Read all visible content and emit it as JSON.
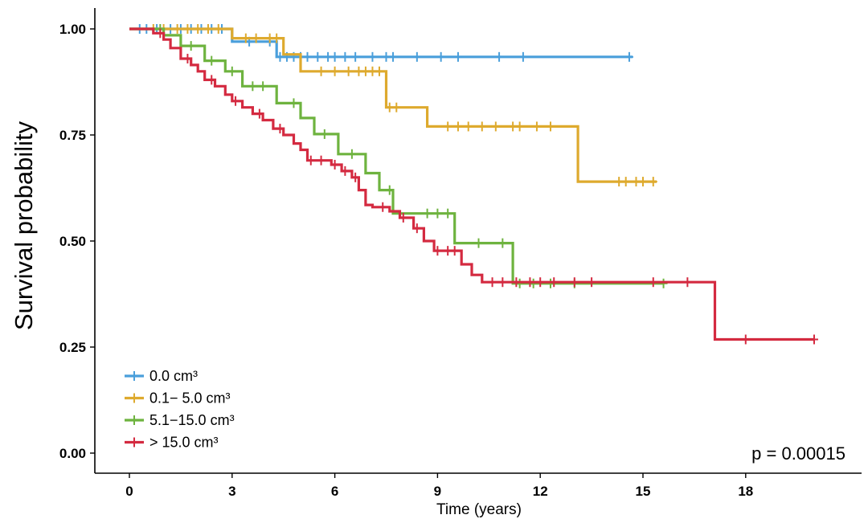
{
  "chart_data": {
    "type": "line",
    "subtype": "kaplan-meier",
    "title": "",
    "xlabel": "Time (years)",
    "ylabel": "Survival probability",
    "xlim": [
      -1,
      21
    ],
    "ylim": [
      -0.05,
      1.05
    ],
    "xticks": [
      0,
      3,
      6,
      9,
      12,
      15,
      18
    ],
    "yticks": [
      0.0,
      0.25,
      0.5,
      0.75,
      1.0
    ],
    "ytick_labels": [
      "0.00",
      "0.25",
      "0.50",
      "0.75",
      "1.00"
    ],
    "grid": false,
    "legend_position": "bottom-left",
    "annotation": "p = 0.00015",
    "series": [
      {
        "name": "0.0 cm³",
        "color": "#4A9FDB",
        "steps": [
          [
            0,
            1.0
          ],
          [
            3.0,
            0.97
          ],
          [
            4.3,
            0.934
          ],
          [
            14.7,
            0.934
          ]
        ],
        "censor_times": [
          0.3,
          0.5,
          0.8,
          1.2,
          1.5,
          1.8,
          2.1,
          2.4,
          2.7,
          3.5,
          4.1,
          4.4,
          4.6,
          4.8,
          5.0,
          5.2,
          5.5,
          5.8,
          6.0,
          6.3,
          6.6,
          7.1,
          7.5,
          7.7,
          8.4,
          9.1,
          9.6,
          10.8,
          11.5,
          14.6
        ]
      },
      {
        "name": "0.1− 5.0 cm³",
        "color": "#DEAA2E",
        "steps": [
          [
            0,
            1.0
          ],
          [
            3.0,
            0.978
          ],
          [
            4.5,
            0.94
          ],
          [
            5.0,
            0.9
          ],
          [
            7.5,
            0.815
          ],
          [
            8.7,
            0.77
          ],
          [
            13.1,
            0.64
          ],
          [
            15.4,
            0.64
          ]
        ],
        "censor_times": [
          0.7,
          1.0,
          1.4,
          1.7,
          2.0,
          2.3,
          2.6,
          3.4,
          3.7,
          4.1,
          4.3,
          5.6,
          6.0,
          6.4,
          6.7,
          6.9,
          7.1,
          7.3,
          7.6,
          7.8,
          9.3,
          9.6,
          9.9,
          10.3,
          10.7,
          11.2,
          11.4,
          11.9,
          12.3,
          14.3,
          14.5,
          14.8,
          15.0,
          15.3
        ]
      },
      {
        "name": "5.1−15.0 cm³",
        "color": "#6EB33F",
        "steps": [
          [
            0,
            1.0
          ],
          [
            1.0,
            0.985
          ],
          [
            1.5,
            0.96
          ],
          [
            2.2,
            0.925
          ],
          [
            2.8,
            0.9
          ],
          [
            3.3,
            0.865
          ],
          [
            4.3,
            0.825
          ],
          [
            5.0,
            0.79
          ],
          [
            5.4,
            0.752
          ],
          [
            6.1,
            0.705
          ],
          [
            6.9,
            0.66
          ],
          [
            7.3,
            0.62
          ],
          [
            7.7,
            0.565
          ],
          [
            9.5,
            0.495
          ],
          [
            11.2,
            0.4
          ],
          [
            15.6,
            0.4
          ]
        ],
        "censor_times": [
          0.9,
          1.8,
          2.4,
          3.0,
          3.6,
          3.9,
          4.8,
          5.7,
          6.5,
          7.6,
          8.7,
          9.0,
          9.3,
          10.2,
          10.9,
          11.4,
          11.8,
          12.3,
          13.0,
          15.6
        ]
      },
      {
        "name": "> 15.0 cm³",
        "color": "#D42A40",
        "steps": [
          [
            0,
            1.0
          ],
          [
            0.7,
            0.99
          ],
          [
            1.0,
            0.975
          ],
          [
            1.2,
            0.955
          ],
          [
            1.5,
            0.93
          ],
          [
            1.8,
            0.915
          ],
          [
            2.0,
            0.9
          ],
          [
            2.2,
            0.88
          ],
          [
            2.5,
            0.865
          ],
          [
            2.8,
            0.845
          ],
          [
            3.0,
            0.83
          ],
          [
            3.3,
            0.815
          ],
          [
            3.6,
            0.8
          ],
          [
            3.9,
            0.785
          ],
          [
            4.2,
            0.765
          ],
          [
            4.5,
            0.75
          ],
          [
            4.8,
            0.73
          ],
          [
            5.0,
            0.715
          ],
          [
            5.2,
            0.69
          ],
          [
            5.9,
            0.68
          ],
          [
            6.2,
            0.665
          ],
          [
            6.5,
            0.65
          ],
          [
            6.7,
            0.62
          ],
          [
            6.9,
            0.585
          ],
          [
            7.1,
            0.58
          ],
          [
            7.6,
            0.57
          ],
          [
            7.9,
            0.555
          ],
          [
            8.3,
            0.53
          ],
          [
            8.6,
            0.5
          ],
          [
            8.9,
            0.477
          ],
          [
            9.7,
            0.445
          ],
          [
            10.0,
            0.42
          ],
          [
            10.3,
            0.403
          ],
          [
            17.1,
            0.268
          ],
          [
            20.0,
            0.268
          ]
        ],
        "censor_times": [
          0.9,
          1.7,
          2.4,
          3.1,
          3.8,
          4.4,
          5.3,
          5.6,
          6.0,
          6.3,
          6.6,
          7.4,
          8.0,
          8.4,
          9.0,
          9.3,
          9.5,
          10.6,
          10.9,
          11.3,
          11.7,
          12.0,
          12.4,
          13.0,
          13.5,
          15.3,
          16.3,
          18.0,
          20.0
        ]
      }
    ]
  }
}
